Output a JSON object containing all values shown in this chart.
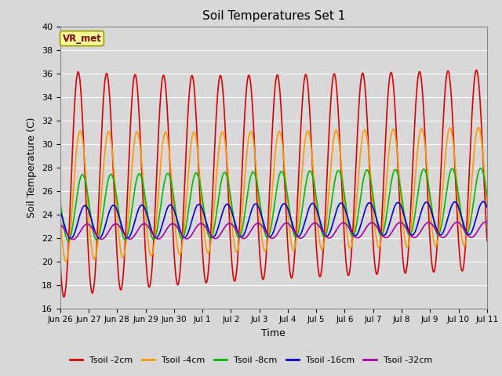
{
  "title": "Soil Temperatures Set 1",
  "xlabel": "Time",
  "ylabel": "Soil Temperature (C)",
  "ylim": [
    16,
    40
  ],
  "yticks": [
    16,
    18,
    20,
    22,
    24,
    26,
    28,
    30,
    32,
    34,
    36,
    38,
    40
  ],
  "bg_color": "#d8d8d8",
  "grid_color": "#ffffff",
  "annotation_text": "VR_met",
  "annotation_bg": "#ffff99",
  "annotation_border": "#999900",
  "series": [
    {
      "label": "Tsoil -2cm",
      "color": "#dd0000",
      "lw": 1.2
    },
    {
      "label": "Tsoil -4cm",
      "color": "#ff9900",
      "lw": 1.2
    },
    {
      "label": "Tsoil -8cm",
      "color": "#00bb00",
      "lw": 1.2
    },
    {
      "label": "Tsoil -16cm",
      "color": "#0000dd",
      "lw": 1.2
    },
    {
      "label": "Tsoil -32cm",
      "color": "#aa00aa",
      "lw": 1.2
    }
  ],
  "tick_labels": [
    "Jun 26",
    "Jun 27",
    "Jun 28",
    "Jun 29",
    "Jun 30",
    "Jul 1",
    "Jul 2",
    "Jul 3",
    "Jul 4",
    "Jul 5",
    "Jul 6",
    "Jul 7",
    "Jul 8",
    "Jul 9",
    "Jul 10",
    "Jul 11"
  ],
  "tick_positions": [
    1,
    2,
    3,
    4,
    5,
    6,
    7,
    8,
    9,
    10,
    11,
    12,
    13,
    14,
    15,
    16
  ]
}
